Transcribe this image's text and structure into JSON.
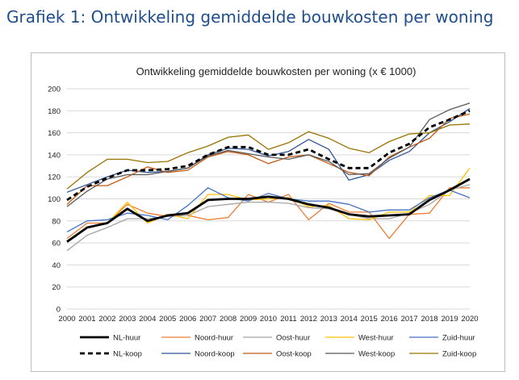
{
  "page": {
    "heading": "Grafiek 1: Ontwikkeling gemiddelde bouwkosten per woning"
  },
  "chart_data": {
    "type": "line",
    "title": "Ontwikkeling gemiddelde bouwkosten per woning (x € 1000)",
    "xlabel": "",
    "ylabel": "",
    "x": [
      "2000",
      "2001",
      "2002",
      "2003",
      "2004",
      "2005",
      "2006",
      "2007",
      "2008",
      "2009",
      "2010",
      "2011",
      "2012",
      "2013",
      "2014",
      "2015",
      "2016",
      "2017",
      "2018",
      "2019",
      "2020"
    ],
    "ylim": [
      0,
      200
    ],
    "yticks": [
      0,
      20,
      40,
      60,
      80,
      100,
      120,
      140,
      160,
      180,
      200
    ],
    "grid": true,
    "legend_position": "bottom",
    "series": [
      {
        "name": "NL-huur",
        "color": "#000000",
        "style": "solid",
        "thick": true,
        "values": [
          61,
          74,
          78,
          91,
          80,
          85,
          87,
          99,
          100,
          100,
          102,
          100,
          95,
          92,
          86,
          84,
          85,
          86,
          99,
          108,
          118
        ]
      },
      {
        "name": "Noord-huur",
        "color": "#ed7d31",
        "style": "solid",
        "thick": false,
        "values": [
          64,
          78,
          78,
          95,
          87,
          84,
          85,
          81,
          83,
          104,
          97,
          104,
          81,
          96,
          88,
          88,
          64,
          86,
          87,
          110,
          110
        ]
      },
      {
        "name": "Oost-huur",
        "color": "#a5a5a5",
        "style": "solid",
        "thick": false,
        "values": [
          53,
          67,
          74,
          82,
          82,
          84,
          85,
          93,
          95,
          97,
          97,
          96,
          92,
          91,
          86,
          82,
          82,
          87,
          95,
          108,
          113
        ]
      },
      {
        "name": "West-huur",
        "color": "#ffc000",
        "style": "solid",
        "thick": false,
        "values": [
          62,
          74,
          78,
          97,
          78,
          86,
          82,
          104,
          104,
          99,
          100,
          101,
          93,
          94,
          82,
          81,
          88,
          88,
          103,
          103,
          128
        ]
      },
      {
        "name": "Zuid-huur",
        "color": "#4472c4",
        "style": "solid",
        "thick": false,
        "values": [
          70,
          80,
          81,
          87,
          85,
          81,
          94,
          110,
          101,
          98,
          105,
          100,
          98,
          98,
          95,
          88,
          90,
          90,
          101,
          108,
          101
        ]
      },
      {
        "name": "NL-koop",
        "color": "#000000",
        "style": "dashed",
        "thick": true,
        "values": [
          99,
          111,
          119,
          126,
          126,
          127,
          130,
          140,
          147,
          147,
          140,
          140,
          145,
          136,
          128,
          128,
          142,
          150,
          165,
          172,
          180
        ]
      },
      {
        "name": "Noord-koop",
        "color": "#2f5597",
        "style": "solid",
        "thick": false,
        "values": [
          106,
          113,
          120,
          126,
          124,
          125,
          128,
          140,
          146,
          145,
          139,
          143,
          154,
          145,
          117,
          122,
          135,
          143,
          160,
          170,
          182
        ]
      },
      {
        "name": "Oost-koop",
        "color": "#c55a11",
        "style": "solid",
        "thick": false,
        "values": [
          95,
          112,
          112,
          120,
          129,
          124,
          126,
          138,
          143,
          140,
          132,
          138,
          140,
          132,
          124,
          121,
          138,
          147,
          155,
          173,
          177
        ]
      },
      {
        "name": "West-koop",
        "color": "#595959",
        "style": "solid",
        "thick": false,
        "values": [
          93,
          107,
          118,
          122,
          122,
          125,
          128,
          139,
          144,
          141,
          138,
          136,
          140,
          134,
          122,
          123,
          137,
          147,
          172,
          181,
          187
        ]
      },
      {
        "name": "Zuid-koop",
        "color": "#997300",
        "style": "solid",
        "thick": false,
        "values": [
          109,
          124,
          136,
          136,
          133,
          134,
          142,
          148,
          156,
          158,
          145,
          151,
          161,
          155,
          146,
          142,
          152,
          159,
          160,
          167,
          168
        ]
      }
    ]
  }
}
